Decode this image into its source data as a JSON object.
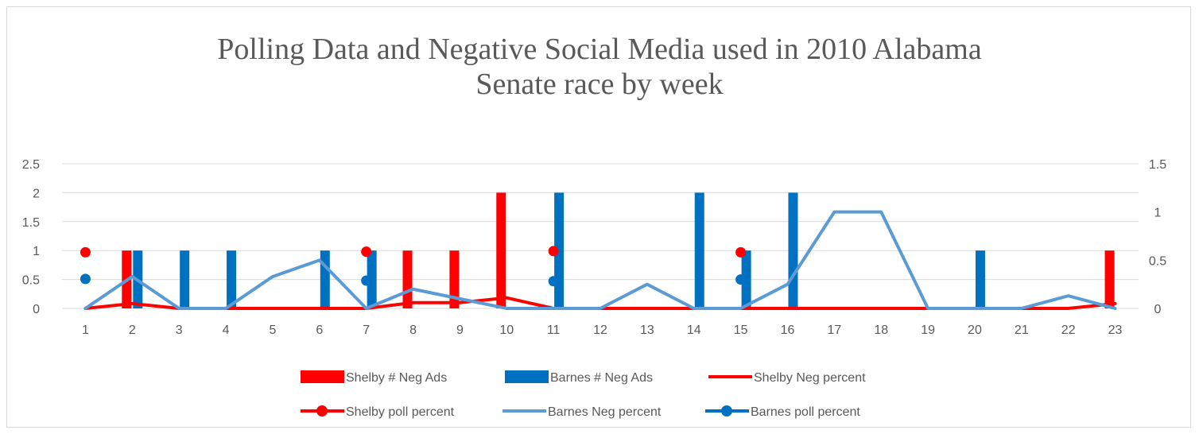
{
  "chart_data": {
    "type": "bar",
    "title_line1": "Polling Data and Negative Social Media used in 2010 Alabama",
    "title_line2": "Senate race by week",
    "categories": [
      "1",
      "2",
      "3",
      "4",
      "5",
      "6",
      "7",
      "8",
      "9",
      "10",
      "11",
      "12",
      "13",
      "14",
      "15",
      "16",
      "17",
      "18",
      "19",
      "20",
      "21",
      "22",
      "23"
    ],
    "ylim_left": [
      0,
      2.5
    ],
    "yticks_left": [
      "0",
      "0.5",
      "1",
      "1.5",
      "2",
      "2.5"
    ],
    "ylim_right": [
      0,
      1.5
    ],
    "yticks_right": [
      "0",
      "0.5",
      "1",
      "1.5"
    ],
    "grid": true,
    "legend_position": "bottom",
    "series": [
      {
        "name": "Shelby # Neg Ads",
        "kind": "bar",
        "axis": "left",
        "color": "#ff0000",
        "values": [
          0,
          1,
          0,
          0,
          0,
          0,
          0,
          1,
          1,
          2,
          0,
          0,
          0,
          0,
          0,
          0,
          0,
          0,
          0,
          0,
          0,
          0,
          1
        ]
      },
      {
        "name": "Barnes # Neg Ads",
        "kind": "bar",
        "axis": "left",
        "color": "#0070c0",
        "values": [
          0,
          1,
          1,
          1,
          0,
          1,
          1,
          0,
          0,
          0,
          2,
          0,
          0,
          2,
          1,
          2,
          0,
          0,
          0,
          1,
          0,
          0,
          0
        ]
      },
      {
        "name": "Shelby Neg percent",
        "kind": "line",
        "axis": "right",
        "color": "#ff0000",
        "values": [
          0,
          0.05,
          0,
          0,
          0,
          0,
          0,
          0.06,
          0.06,
          0.11,
          0,
          0,
          0,
          0,
          0,
          0,
          0,
          0,
          0,
          0,
          0,
          0,
          0.05
        ]
      },
      {
        "name": "Shelby poll percent",
        "kind": "marker-line",
        "axis": "left",
        "color": "#ff0000",
        "values": [
          0.97,
          null,
          null,
          null,
          null,
          null,
          0.98,
          null,
          null,
          null,
          0.99,
          null,
          null,
          null,
          0.97,
          null,
          null,
          null,
          null,
          null,
          null,
          null,
          null
        ]
      },
      {
        "name": "Barnes Neg percent",
        "kind": "line",
        "axis": "right",
        "color": "#5b9bd5",
        "values": [
          0,
          0.33,
          0,
          0,
          0.33,
          0.5,
          0,
          0.2,
          0.1,
          0,
          0,
          0,
          0.25,
          0,
          0,
          0.25,
          1,
          1,
          0,
          0,
          0,
          0.13,
          0
        ]
      },
      {
        "name": "Barnes poll percent",
        "kind": "marker-line",
        "axis": "left",
        "color": "#0070c0",
        "values": [
          0.51,
          null,
          null,
          null,
          null,
          null,
          0.48,
          null,
          null,
          null,
          0.47,
          null,
          null,
          null,
          0.5,
          null,
          null,
          null,
          null,
          null,
          null,
          null,
          null
        ]
      }
    ]
  }
}
